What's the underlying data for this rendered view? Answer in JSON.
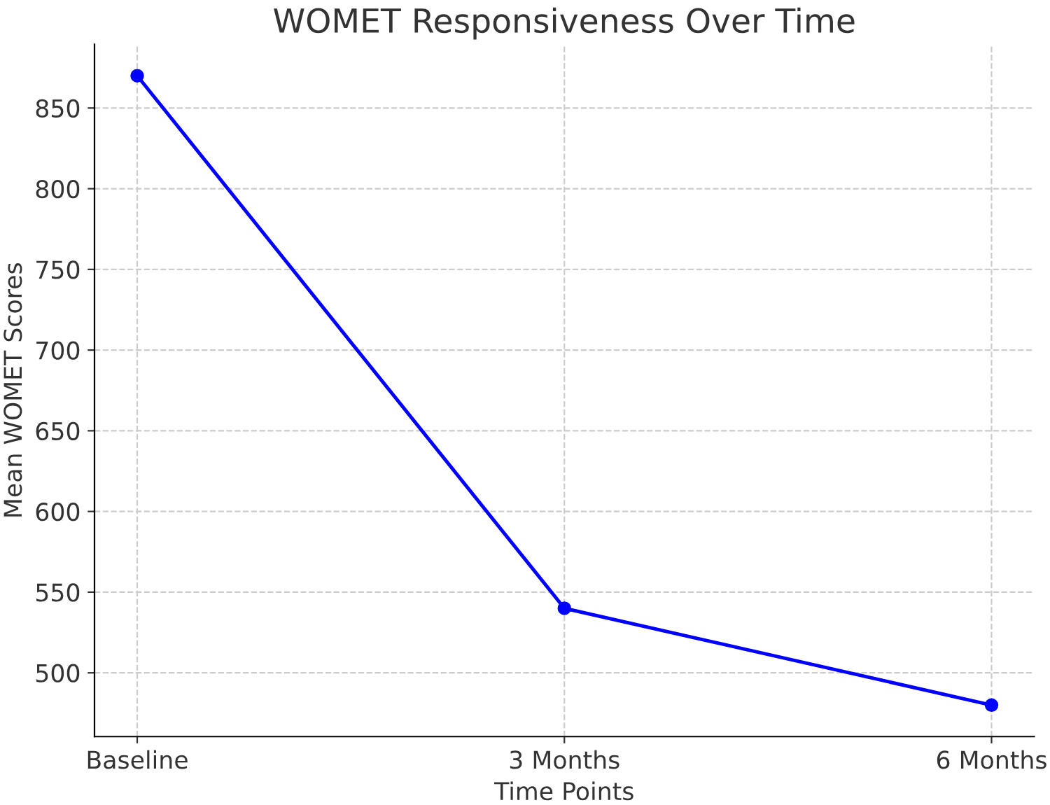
{
  "chart_data": {
    "type": "line",
    "title": "WOMET Responsiveness Over Time",
    "xlabel": "Time Points",
    "ylabel": "Mean WOMET Scores",
    "categories": [
      "Baseline",
      "3 Months",
      "6 Months"
    ],
    "series": [
      {
        "color": "#0000ff",
        "values": [
          870,
          540,
          480
        ]
      }
    ],
    "ylim": [
      460.5,
      889.5
    ],
    "yticks": [
      500,
      550,
      600,
      650,
      700,
      750,
      800,
      850
    ],
    "grid": true,
    "marker": "circle",
    "line_style": "solid"
  }
}
